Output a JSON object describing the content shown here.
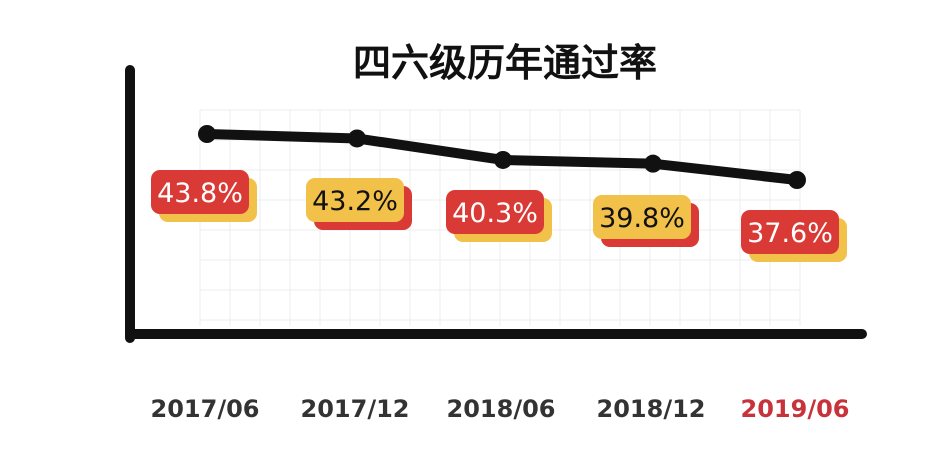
{
  "chart_data": {
    "type": "line",
    "title": "四六级历年通过率",
    "categories": [
      "2017/06",
      "2017/12",
      "2018/06",
      "2018/12",
      "2019/06"
    ],
    "values": [
      43.8,
      43.2,
      40.3,
      39.8,
      37.6
    ],
    "value_labels": [
      "43.8%",
      "43.2%",
      "40.3%",
      "39.8%",
      "37.6%"
    ],
    "grid": true,
    "legend": "none",
    "colors": {
      "line": "#111111",
      "axis": "#111111",
      "badge_red": "#d93a35",
      "badge_yellow": "#f2c14a",
      "badge_text_on_red": "#ffffff",
      "badge_text_on_yellow": "#111111",
      "tick_label": "#333333",
      "tick_label_highlight": "#c7333a",
      "grid": "#eeeeee"
    },
    "badge_styles": [
      "red",
      "yellow",
      "red",
      "yellow",
      "red"
    ],
    "highlight_category_index": 4
  }
}
